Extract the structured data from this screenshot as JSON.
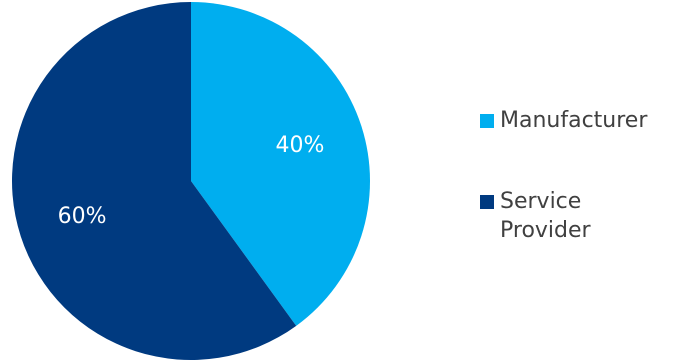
{
  "chart_data": {
    "type": "pie",
    "slices": [
      {
        "name": "Manufacturer",
        "value": 40,
        "label": "40%",
        "color": "#00AEEF"
      },
      {
        "name": "Service Provider",
        "value": 60,
        "label": "60%",
        "color": "#003A80"
      }
    ],
    "legend_placement": "right",
    "start_angle": "12 o'clock",
    "direction": "clockwise"
  }
}
